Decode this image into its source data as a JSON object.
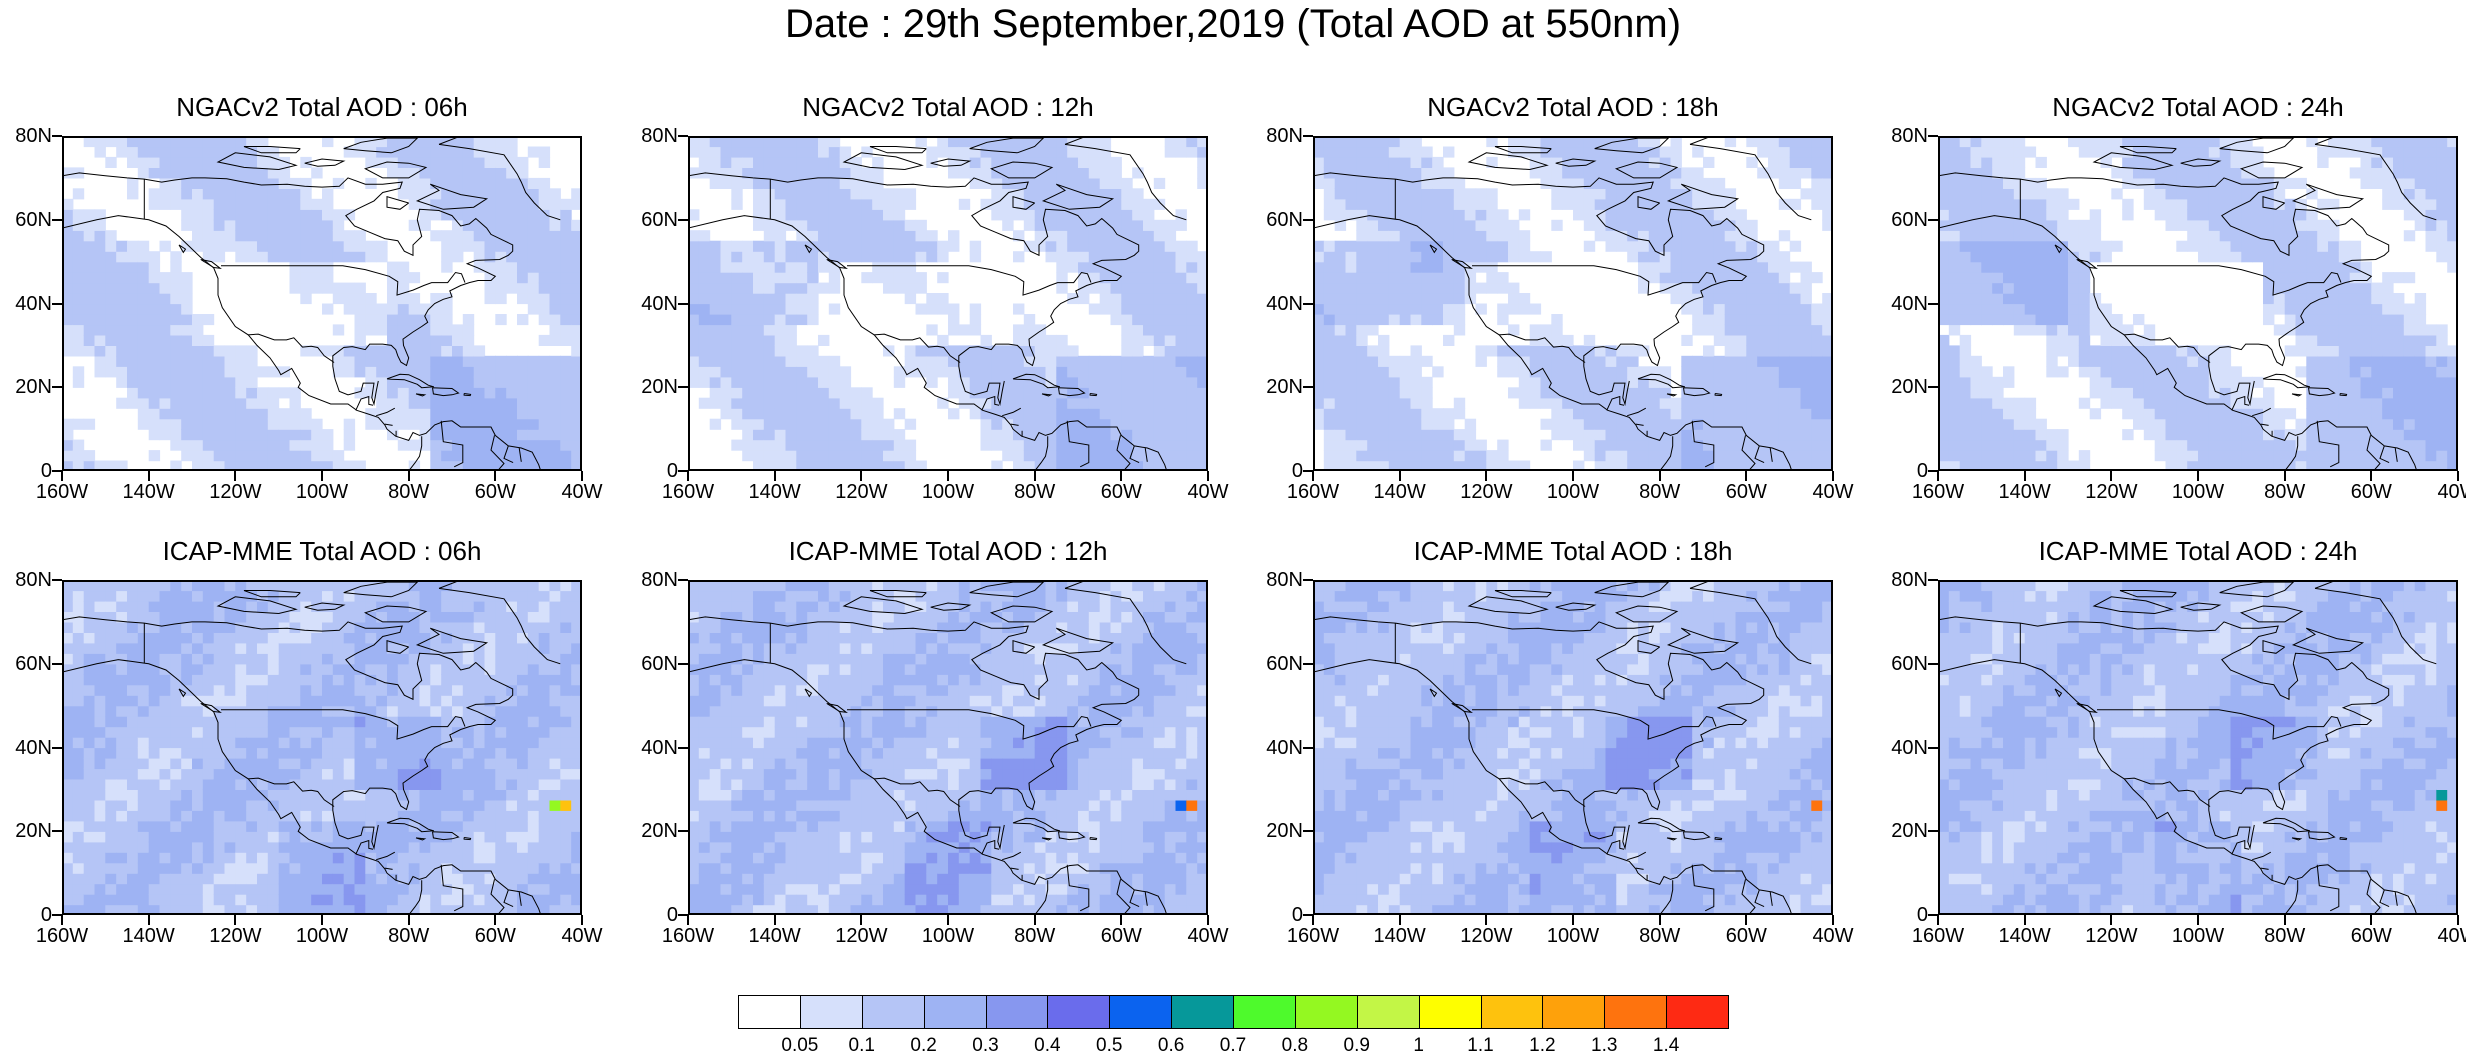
{
  "title": "Date : 29th September,2019 (Total AOD at 550nm)",
  "panels": [
    {
      "title": "NGACv2 Total AOD : 06h",
      "model": "ngac"
    },
    {
      "title": "NGACv2 Total AOD : 12h",
      "model": "ngac"
    },
    {
      "title": "NGACv2 Total AOD : 18h",
      "model": "ngac"
    },
    {
      "title": "NGACv2 Total AOD : 24h",
      "model": "ngac"
    },
    {
      "title": "ICAP-MME Total AOD : 06h",
      "model": "icap"
    },
    {
      "title": "ICAP-MME Total AOD : 12h",
      "model": "icap"
    },
    {
      "title": "ICAP-MME Total AOD : 18h",
      "model": "icap"
    },
    {
      "title": "ICAP-MME Total AOD : 24h",
      "model": "icap"
    }
  ],
  "axes": {
    "lat_ticks": [
      "80N",
      "60N",
      "40N",
      "20N",
      "0"
    ],
    "lat_values": [
      80,
      60,
      40,
      20,
      0
    ],
    "lon_ticks": [
      "160W",
      "140W",
      "120W",
      "100W",
      "80W",
      "60W",
      "40W"
    ],
    "lon_values": [
      -160,
      -140,
      -120,
      -100,
      -80,
      -60,
      -40
    ],
    "lon_range": [
      -160,
      -40
    ],
    "lat_range": [
      0,
      80
    ]
  },
  "colorbar": {
    "labels": [
      "0.05",
      "0.1",
      "0.2",
      "0.3",
      "0.4",
      "0.5",
      "0.6",
      "0.7",
      "0.8",
      "0.9",
      "1",
      "1.1",
      "1.2",
      "1.3",
      "1.4"
    ],
    "colors": [
      "#ffffff",
      "#d6e0fb",
      "#b5c5f6",
      "#9eb3f3",
      "#8797ef",
      "#6a6cec",
      "#0b63ef",
      "#06989a",
      "#4efa2c",
      "#94f821",
      "#c3f646",
      "#fefe00",
      "#fec20d",
      "#fea10b",
      "#fe730e",
      "#fe2a13"
    ]
  },
  "colors": {
    "coast": "#000000",
    "aod_low": "#d6e0fb",
    "aod_mid": "#b5c5f6",
    "aod_high": "#9eb3f3"
  }
}
